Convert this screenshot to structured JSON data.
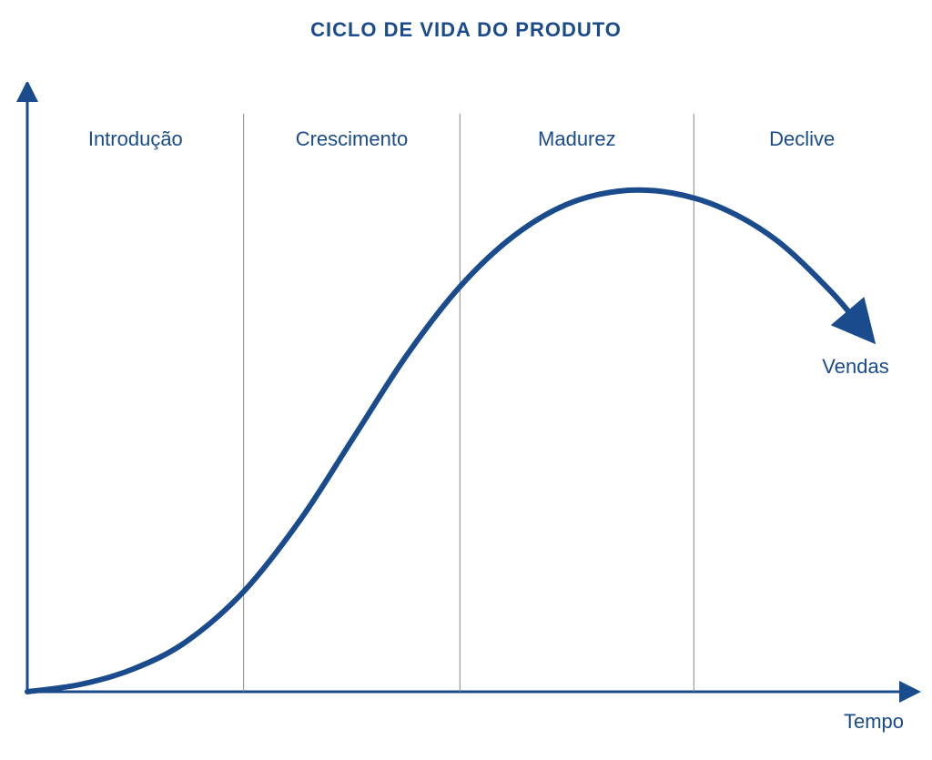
{
  "title": "CICLO DE VIDA DO PRODUTO",
  "title_fontsize": 22,
  "title_color": "#1a4b8c",
  "chart": {
    "type": "line",
    "background_color": "#ffffff",
    "axis_color": "#1a4b8c",
    "axis_width": 3,
    "divider_color": "#888888",
    "divider_width": 1,
    "text_color": "#1a4b8c",
    "curve_color": "#1a4b8c",
    "curve_width": 6,
    "phase_label_fontsize": 22,
    "axis_label_fontsize": 22,
    "xlim": [
      0,
      1000
    ],
    "ylim": [
      0,
      640
    ],
    "x_axis_label": "Tempo",
    "curve_label": "Vendas",
    "phases": [
      {
        "label": "Introdução",
        "x_start": 0,
        "x_end": 245
      },
      {
        "label": "Crescimento",
        "x_start": 245,
        "x_end": 490
      },
      {
        "label": "Madurez",
        "x_start": 490,
        "x_end": 755
      },
      {
        "label": "Declive",
        "x_start": 755,
        "x_end": 1000
      }
    ],
    "curve_points": [
      {
        "x": 0,
        "y": 0
      },
      {
        "x": 60,
        "y": 8
      },
      {
        "x": 120,
        "y": 25
      },
      {
        "x": 180,
        "y": 55
      },
      {
        "x": 245,
        "y": 110
      },
      {
        "x": 310,
        "y": 190
      },
      {
        "x": 370,
        "y": 280
      },
      {
        "x": 430,
        "y": 370
      },
      {
        "x": 490,
        "y": 445
      },
      {
        "x": 550,
        "y": 500
      },
      {
        "x": 610,
        "y": 535
      },
      {
        "x": 670,
        "y": 550
      },
      {
        "x": 730,
        "y": 548
      },
      {
        "x": 790,
        "y": 530
      },
      {
        "x": 850,
        "y": 495
      },
      {
        "x": 910,
        "y": 440
      },
      {
        "x": 945,
        "y": 400
      }
    ]
  }
}
